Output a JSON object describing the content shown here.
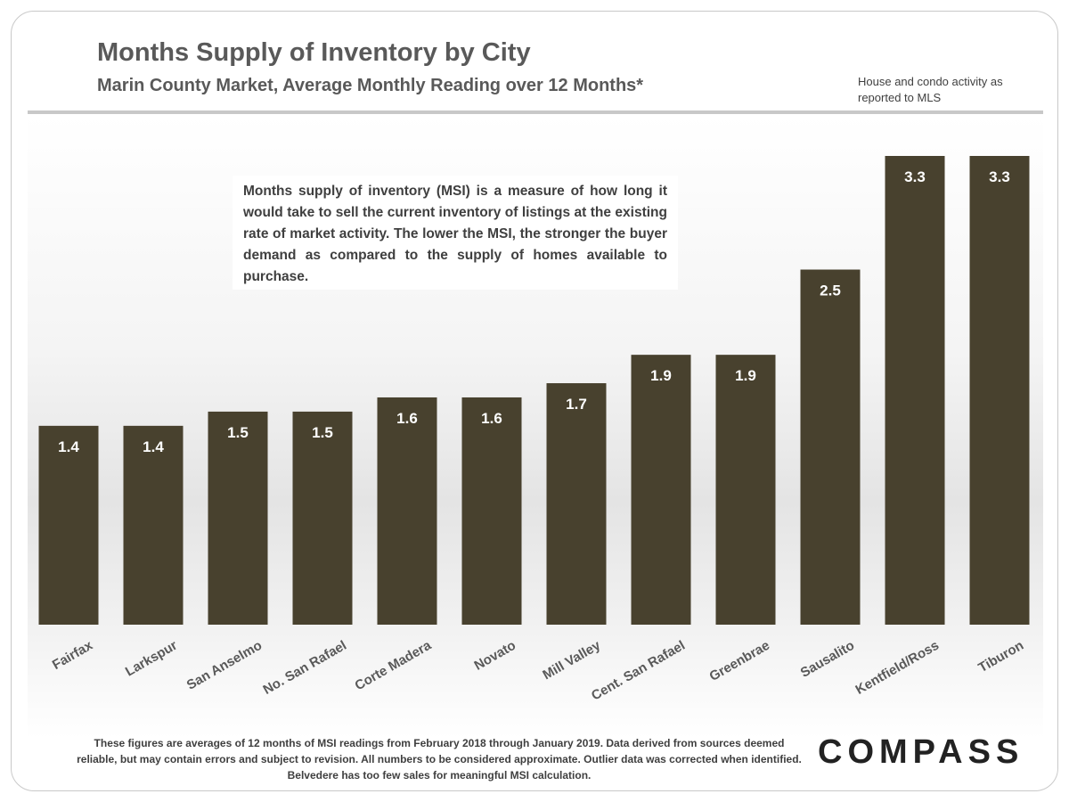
{
  "chart_data": {
    "type": "bar",
    "title": "Months Supply of Inventory by City",
    "subtitle": "Marin County Market, Average Monthly Reading over 12 Months*",
    "categories": [
      "Fairfax",
      "Larkspur",
      "San Anselmo",
      "No. San Rafael",
      "Corte Madera",
      "Novato",
      "Mill Valley",
      "Cent. San Rafael",
      "Greenbrae",
      "Sausalito",
      "Kentfield/Ross",
      "Tiburon"
    ],
    "values": [
      1.4,
      1.4,
      1.5,
      1.5,
      1.6,
      1.6,
      1.7,
      1.9,
      1.9,
      2.5,
      3.3,
      3.3
    ],
    "ylim": [
      0,
      3.3
    ],
    "xlabel": "",
    "ylabel": "",
    "grid": false,
    "legend": false,
    "bar_color": "#48412e",
    "label_color": "#ffffff"
  },
  "header": {
    "title": "Months Supply of Inventory by City",
    "subtitle": "Marin County Market, Average Monthly Reading over 12 Months*",
    "note": "House and condo activity as reported to MLS"
  },
  "info_box": {
    "text": "Months supply of inventory (MSI) is a measure of how long it would take to sell the current inventory of listings at the existing rate of market activity. The lower the MSI, the stronger the buyer demand as compared to the supply of homes available to purchase."
  },
  "footer": {
    "text": "These figures are averages of 12 months of MSI readings from February 2018 through January 2019. Data derived from sources deemed reliable, but may contain errors and subject to revision. All numbers to be considered approximate. Outlier data was corrected when identified. Belvedere has too few sales for meaningful MSI calculation."
  },
  "logo": {
    "text": "COMPASS"
  }
}
